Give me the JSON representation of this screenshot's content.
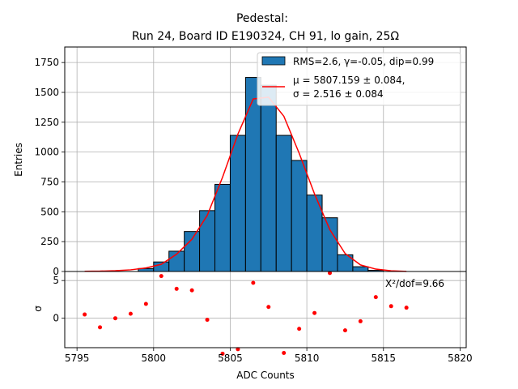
{
  "chart_data": {
    "type": "bar",
    "title": "Pedestal:",
    "subtitle": "Run 24, Board ID E190324, CH 91, lo gain, 25Ω",
    "xlabel": "ADC Counts",
    "ylabel": "Entries",
    "residual_ylabel": "σ",
    "xlim": [
      5794.2,
      5820.4
    ],
    "ylim": [
      0,
      1880
    ],
    "residual_ylim": [
      -3.9,
      6.2
    ],
    "x_ticks": [
      5795,
      5800,
      5805,
      5810,
      5815,
      5820
    ],
    "y_ticks": [
      0,
      250,
      500,
      750,
      1000,
      1250,
      1500,
      1750
    ],
    "residual_y_ticks": [
      0,
      5
    ],
    "grid": true,
    "legend_position": "top-right",
    "histogram": {
      "name": "RMS=2.6, γ=-0.05, dip=0.99",
      "color": "#1f77b4",
      "bin_edges": [
        5799,
        5800,
        5801,
        5802,
        5803,
        5804,
        5805,
        5806,
        5807,
        5808,
        5809,
        5810,
        5811,
        5812,
        5813,
        5814,
        5815
      ],
      "values": [
        25,
        80,
        170,
        335,
        510,
        730,
        1140,
        1625,
        1560,
        1140,
        930,
        640,
        450,
        140,
        40,
        10
      ]
    },
    "fit": {
      "name_line1": "μ = 5807.159 ± 0.084,",
      "name_line2": "σ = 2.516 ± 0.084",
      "color": "#ff0000",
      "x": [
        5795.5,
        5796.5,
        5797.5,
        5798.5,
        5799.5,
        5800.5,
        5801.5,
        5802.5,
        5803.5,
        5804.5,
        5805.5,
        5806.5,
        5807.5,
        5808.5,
        5809.5,
        5810.5,
        5811.5,
        5812.5,
        5813.5,
        5814.5,
        5815.5,
        5816.5
      ],
      "y": [
        2,
        3,
        7,
        14,
        30,
        60,
        145,
        270,
        470,
        790,
        1150,
        1445,
        1460,
        1300,
        990,
        650,
        350,
        150,
        55,
        20,
        6,
        1
      ]
    },
    "residuals": {
      "color": "#ff0000",
      "x": [
        5795.5,
        5796.5,
        5797.5,
        5798.5,
        5799.5,
        5800.5,
        5801.5,
        5802.5,
        5803.5,
        5804.5,
        5805.5,
        5806.5,
        5807.5,
        5808.5,
        5809.5,
        5810.5,
        5811.5,
        5812.5,
        5813.5,
        5814.5,
        5815.5,
        5816.5
      ],
      "y": [
        0.5,
        -1.2,
        0,
        0.6,
        1.9,
        5.6,
        3.9,
        3.7,
        -0.2,
        -4.7,
        -4.1,
        4.7,
        1.5,
        -4.6,
        -1.4,
        0.7,
        6.0,
        -1.6,
        -0.4,
        2.8,
        1.6,
        1.4
      ]
    },
    "annotation": "X²/dof=9.66"
  }
}
